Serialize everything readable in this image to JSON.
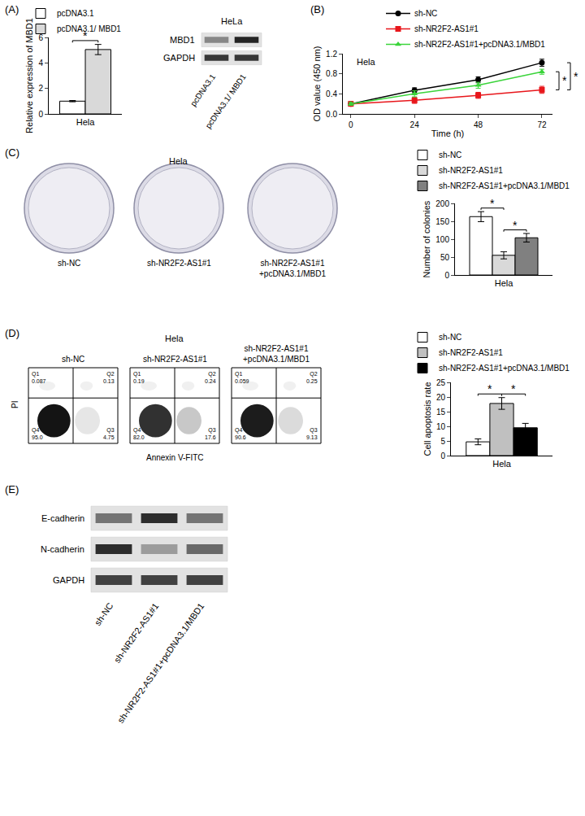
{
  "chart_data": [
    {
      "panel": "(A)",
      "type": "bar",
      "categories": [
        "Hela"
      ],
      "ylabel": "Relative expression of MBD1",
      "ylim": [
        0,
        6
      ],
      "yticks": [
        0,
        2,
        4,
        6
      ],
      "legend": "top left",
      "series": [
        {
          "name": "pcDNA3.1",
          "color": "#ffffff",
          "values": [
            1.0
          ],
          "error": [
            0.05
          ]
        },
        {
          "name": "pcDNA3.1/ MBD1",
          "color": "#d9d9d9",
          "values": [
            5.05
          ],
          "error": [
            0.4
          ]
        }
      ],
      "significance": [
        {
          "between": [
            0,
            1
          ],
          "label": "*"
        }
      ]
    },
    {
      "type": "blot",
      "title": "HeLa",
      "rows": [
        "MBD1",
        "GAPDH"
      ],
      "lanes": [
        "pcDNA3.1",
        "pcDNA3.1/ MBD1"
      ],
      "band_intensity": [
        [
          0.45,
          0.95
        ],
        [
          0.85,
          0.85
        ]
      ]
    },
    {
      "panel": "(B)",
      "type": "line",
      "title": "Hela",
      "xlabel": "Time (h)",
      "ylabel": "OD value (450 nm)",
      "x": [
        0,
        24,
        48,
        72
      ],
      "xlim": [
        -3,
        76
      ],
      "xticks": [
        0,
        24,
        48,
        72
      ],
      "ylim": [
        0,
        1.2
      ],
      "yticks": [
        {
          "value": 0,
          "label": "0.0"
        },
        {
          "value": 0.4,
          "label": "0.4"
        },
        {
          "value": 0.8,
          "label": "0.8"
        },
        {
          "value": 1.2,
          "label": "1.2"
        }
      ],
      "legend": "top left",
      "series": [
        {
          "name": "sh-NC",
          "color": "#000000",
          "marker": "circle",
          "values": [
            0.2,
            0.47,
            0.68,
            1.02
          ],
          "error": [
            0.03,
            0.05,
            0.06,
            0.07
          ]
        },
        {
          "name": "sh-NR2F2-AS1#1",
          "color": "#e8161b",
          "marker": "square",
          "values": [
            0.2,
            0.27,
            0.37,
            0.48
          ],
          "error": [
            0.04,
            0.06,
            0.06,
            0.07
          ]
        },
        {
          "name": "sh-NR2F2-AS1#1+pcDNA3.1/MBD1",
          "color": "#3ad43a",
          "marker": "triangle",
          "values": [
            0.2,
            0.4,
            0.57,
            0.84
          ],
          "error": [
            0.03,
            0.06,
            0.06,
            0.05
          ]
        }
      ],
      "significance": [
        {
          "between": [
            1,
            2
          ],
          "label": "*"
        },
        {
          "between": [
            0,
            1
          ],
          "label": "*"
        }
      ]
    },
    {
      "panel": "(C)",
      "type": "plates",
      "title": "Hela",
      "labels": [
        "sh-NC",
        "sh-NR2F2-AS1#1",
        "sh-NR2F2-AS1#1\n+pcDNA3.1/MBD1"
      ]
    },
    {
      "type": "bar",
      "categories": [
        "Hela"
      ],
      "ylabel": "Number of colonies",
      "ylim": [
        0,
        200
      ],
      "yticks": [
        0,
        50,
        100,
        150,
        200
      ],
      "legend": "top left",
      "series": [
        {
          "name": "sh-NC",
          "color": "#ffffff",
          "values": [
            163
          ],
          "error": [
            14
          ]
        },
        {
          "name": "sh-NR2F2-AS1#1",
          "color": "#d9d9d9",
          "values": [
            55
          ],
          "error": [
            10
          ]
        },
        {
          "name": "sh-NR2F2-AS1#1+pcDNA3.1/MBD1",
          "color": "#808080",
          "values": [
            104
          ],
          "error": [
            12
          ]
        }
      ],
      "significance": [
        {
          "between": [
            0,
            1
          ],
          "label": "*"
        },
        {
          "between": [
            1,
            2
          ],
          "label": "*"
        }
      ]
    },
    {
      "panel": "(D)",
      "type": "flow",
      "title": "Hela",
      "xlabel": "Annexin V-FITC",
      "ylabel": "PI",
      "plots": [
        {
          "label": "sh-NC",
          "quadrants": [
            "Q1",
            "Q2",
            "Q3",
            "Q4"
          ],
          "values": [
            0.087,
            0.13,
            4.75,
            95.0
          ],
          "value_labels": [
            "0.087",
            "0.13",
            "4.75",
            "95.0"
          ]
        },
        {
          "label": "sh-NR2F2-AS1#1",
          "quadrants": [
            "Q1",
            "Q2",
            "Q3",
            "Q4"
          ],
          "values": [
            0.19,
            0.24,
            17.6,
            82.0
          ],
          "value_labels": [
            "0.19",
            "0.24",
            "17.6",
            "82.0"
          ]
        },
        {
          "label": "sh-NR2F2-AS1#1\n+pcDNA3.1/MBD1",
          "quadrants": [
            "Q1",
            "Q2",
            "Q3",
            "Q4"
          ],
          "values": [
            0.059,
            0.25,
            9.13,
            90.6
          ],
          "value_labels": [
            "0.059",
            "0.25",
            "9.13",
            "90.6"
          ]
        }
      ]
    },
    {
      "type": "bar",
      "categories": [
        "Hela"
      ],
      "ylabel": "Cell apoptosis rate",
      "ylim": [
        0,
        25
      ],
      "yticks": [
        0,
        5,
        10,
        15,
        20,
        25
      ],
      "legend": "top left",
      "series": [
        {
          "name": "sh-NC",
          "color": "#ffffff",
          "values": [
            4.7
          ],
          "error": [
            1.0
          ]
        },
        {
          "name": "sh-NR2F2-AS1#1",
          "color": "#c0c0c0",
          "values": [
            17.8
          ],
          "error": [
            2.0
          ]
        },
        {
          "name": "sh-NR2F2-AS1#1+pcDNA3.1/MBD1",
          "color": "#000000",
          "values": [
            9.5
          ],
          "error": [
            1.5
          ]
        }
      ],
      "significance": [
        {
          "between": [
            0,
            1
          ],
          "label": "*"
        },
        {
          "between": [
            1,
            2
          ],
          "label": "*"
        }
      ]
    },
    {
      "panel": "(E)",
      "type": "blot",
      "rows": [
        "E-cadherin",
        "N-cadherin",
        "GAPDH"
      ],
      "lanes": [
        "sh-NC",
        "sh-NR2F2-AS1#1",
        "sh-NR2F2-AS1#1+pcDNA3.1/MBD1"
      ],
      "band_intensity": [
        [
          0.55,
          0.9,
          0.55
        ],
        [
          0.9,
          0.35,
          0.6
        ],
        [
          0.8,
          0.8,
          0.8
        ]
      ]
    }
  ]
}
